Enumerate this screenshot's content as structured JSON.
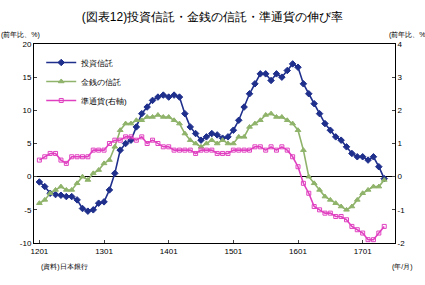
{
  "chart_data": {
    "type": "line",
    "title": "(図表12)投資信託・金銭の信託・準通貨の伸び率",
    "ylabel": "(前年比、%)",
    "y2label": "(前年比、%)",
    "xlabel": "(年/月)",
    "annotations": [
      {
        "text": "(資料)日本銀行"
      }
    ],
    "categories": [
      "1201",
      null,
      null,
      null,
      null,
      null,
      null,
      null,
      null,
      null,
      null,
      null,
      "1301",
      null,
      null,
      null,
      null,
      null,
      null,
      null,
      null,
      null,
      null,
      null,
      "1401",
      null,
      null,
      null,
      null,
      null,
      null,
      null,
      null,
      null,
      null,
      null,
      "1501",
      null,
      null,
      null,
      null,
      null,
      null,
      null,
      null,
      null,
      null,
      null,
      "1601",
      null,
      null,
      null,
      null,
      null,
      null,
      null,
      null,
      null,
      null,
      null,
      "1701",
      null,
      null,
      null,
      null
    ],
    "series": [
      {
        "name": "投資信託",
        "color": "#1f2f8c",
        "marker": "diamond",
        "line_style": "solid",
        "values": [
          -0.8,
          -1.5,
          -2.5,
          -2.7,
          -2.8,
          -3.0,
          -3.0,
          -3.5,
          -4.8,
          -5.2,
          -5.0,
          -4.0,
          -3.8,
          -2.0,
          0.5,
          4.0,
          5.0,
          5.5,
          7.5,
          9.5,
          10.5,
          11.5,
          12.0,
          12.3,
          12.0,
          12.3,
          12.0,
          9.5,
          7.5,
          6.5,
          5.5,
          6.0,
          6.5,
          6.3,
          5.8,
          6.0,
          7.0,
          8.5,
          10.5,
          12.5,
          14.0,
          15.5,
          15.5,
          14.5,
          15.5,
          15.0,
          16.0,
          17.0,
          16.5,
          14.0,
          12.5,
          11.0,
          9.5,
          8.0,
          7.0,
          6.0,
          5.5,
          4.5,
          3.5,
          3.0,
          3.0,
          2.5,
          3.0,
          1.5,
          -0.3
        ]
      },
      {
        "name": "金銭の信託",
        "color": "#8fb36a",
        "marker": "triangle",
        "line_style": "solid",
        "values": [
          -4.0,
          -3.5,
          -2.5,
          -2.0,
          -1.5,
          -2.0,
          -2.0,
          -1.0,
          0.0,
          -0.5,
          0.5,
          1.0,
          2.0,
          2.5,
          4.5,
          7.0,
          8.0,
          8.0,
          8.5,
          8.5,
          9.0,
          9.0,
          9.3,
          9.0,
          9.0,
          8.5,
          8.0,
          6.5,
          5.5,
          5.0,
          4.5,
          5.0,
          5.5,
          5.0,
          5.5,
          5.0,
          5.0,
          6.0,
          6.0,
          7.5,
          8.0,
          8.5,
          9.3,
          9.5,
          9.0,
          9.0,
          8.5,
          8.0,
          7.0,
          4.0,
          0.0,
          -1.0,
          -2.0,
          -3.0,
          -3.5,
          -4.0,
          -4.5,
          -5.0,
          -4.5,
          -3.5,
          -2.5,
          -2.0,
          -1.5,
          -1.5,
          -0.5
        ]
      },
      {
        "name": "準通貨(右軸)",
        "color": "#e040c0",
        "marker": "square-open",
        "line_style": "solid",
        "axis": "y2",
        "values": [
          0.5,
          0.6,
          0.7,
          0.7,
          0.5,
          0.4,
          0.6,
          0.6,
          0.6,
          0.6,
          0.8,
          0.8,
          0.8,
          1.0,
          1.1,
          1.1,
          1.2,
          1.2,
          1.1,
          1.2,
          1.0,
          1.1,
          1.0,
          0.9,
          0.9,
          0.8,
          0.8,
          0.8,
          0.8,
          0.7,
          0.8,
          0.8,
          0.8,
          0.7,
          0.7,
          0.7,
          0.8,
          0.8,
          0.8,
          0.8,
          0.9,
          0.9,
          0.8,
          0.9,
          0.8,
          0.9,
          0.8,
          0.6,
          0.3,
          -0.2,
          -0.5,
          -0.9,
          -1.0,
          -1.1,
          -1.1,
          -1.2,
          -1.2,
          -1.3,
          -1.5,
          -1.6,
          -1.7,
          -1.9,
          -1.9,
          -1.7,
          -1.5
        ]
      }
    ],
    "ylim": [
      -10,
      20
    ],
    "yticks": [
      -10,
      -5,
      0,
      5,
      10,
      15,
      20
    ],
    "y2lim": [
      -2,
      4
    ],
    "y2ticks": [
      -2,
      -1,
      0,
      1,
      2,
      3,
      4
    ],
    "grid": false,
    "legend": "upper left"
  }
}
